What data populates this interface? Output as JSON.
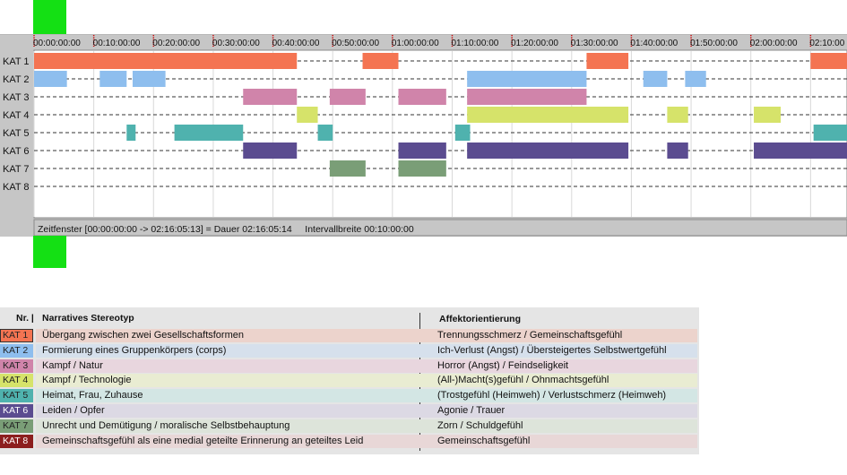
{
  "timeline": {
    "ticks": [
      "00:00:00:00",
      "00:10:00:00",
      "00:20:00:00",
      "00:30:00:00",
      "00:40:00:00",
      "00:50:00:00",
      "01:00:00:00",
      "01:10:00:00",
      "01:20:00:00",
      "01:30:00:00",
      "01:40:00:00",
      "01:50:00:00",
      "02:00:00:00",
      "02:10:00"
    ],
    "categories": [
      "KAT 1",
      "KAT 2",
      "KAT 3",
      "KAT 4",
      "KAT 5",
      "KAT 6",
      "KAT 7",
      "KAT 8"
    ],
    "segments_minutes": [
      [
        [
          0,
          44
        ],
        [
          55,
          61
        ],
        [
          92.5,
          99.5
        ],
        [
          130,
          136.1
        ]
      ],
      [
        [
          0,
          5.5
        ],
        [
          11,
          15.5
        ],
        [
          16.5,
          22
        ],
        [
          72.5,
          92.5
        ],
        [
          102,
          106
        ],
        [
          109,
          112.5
        ]
      ],
      [
        [
          35,
          44
        ],
        [
          49.5,
          55.5
        ],
        [
          61,
          69
        ],
        [
          72.5,
          92.5
        ]
      ],
      [
        [
          44,
          47.5
        ],
        [
          72.5,
          99.5
        ],
        [
          106,
          109.5
        ],
        [
          120.5,
          125
        ]
      ],
      [
        [
          15.5,
          17
        ],
        [
          23.5,
          35
        ],
        [
          47.5,
          50
        ],
        [
          70.5,
          73
        ],
        [
          130.5,
          136.1
        ]
      ],
      [
        [
          35,
          44
        ],
        [
          61,
          69
        ],
        [
          72.5,
          99.5
        ],
        [
          106,
          109.5
        ],
        [
          120.5,
          136.1
        ]
      ],
      [
        [
          49.5,
          55.5
        ],
        [
          61,
          69
        ]
      ],
      []
    ],
    "status_text": "Zeitfenster [00:00:00:00 -> 02:16:05:13] = Dauer 02:16:05:14     Intervallbreite 00:10:00:00",
    "total_minutes": 136.1
  },
  "colors": {
    "kat1": "#f47452",
    "kat2": "#8ebeee",
    "kat3": "#d084aa",
    "kat4": "#d6e36a",
    "kat5": "#4fb2ae",
    "kat6": "#5b4c90",
    "kat7": "#7a9e77",
    "kat8": "#8c1e1e",
    "tick": "#cc0000"
  },
  "legend": {
    "header_nr": "Nr. |",
    "header_stereotype": "Narratives Stereotyp",
    "header_affect": "Affektorientierung",
    "rows": [
      {
        "kat": "KAT 1",
        "stereotype": "Übergang zwischen zwei Gesellschaftsformen",
        "affect": "Trennungsschmerz / Gemeinschaftsgefühl"
      },
      {
        "kat": "KAT 2",
        "stereotype": "Formierung eines Gruppenkörpers (corps)",
        "affect": "Ich-Verlust (Angst) / Übersteigertes Selbstwertgefühl"
      },
      {
        "kat": "KAT 3",
        "stereotype": "Kampf / Natur",
        "affect": "Horror (Angst) / Feindseligkeit"
      },
      {
        "kat": "KAT 4",
        "stereotype": "Kampf / Technologie",
        "affect": "(All-)Macht(s)gefühl / Ohnmachtsgefühl"
      },
      {
        "kat": "KAT 5",
        "stereotype": "Heimat, Frau, Zuhause",
        "affect": "(Trostgefühl (Heimweh) / Verlustschmerz (Heimweh)"
      },
      {
        "kat": "KAT 6",
        "stereotype": "Leiden / Opfer",
        "affect": "Agonie / Trauer"
      },
      {
        "kat": "KAT 7",
        "stereotype": "Unrecht und Demütigung / moralische Selbstbehauptung",
        "affect": "Zorn / Schuldgefühl"
      },
      {
        "kat": "KAT 8",
        "stereotype": "Gemeinschaftsgefühl als eine medial geteilte Erinnerung an geteiltes Leid",
        "affect": "Gemeinschaftsgefühl"
      }
    ]
  }
}
